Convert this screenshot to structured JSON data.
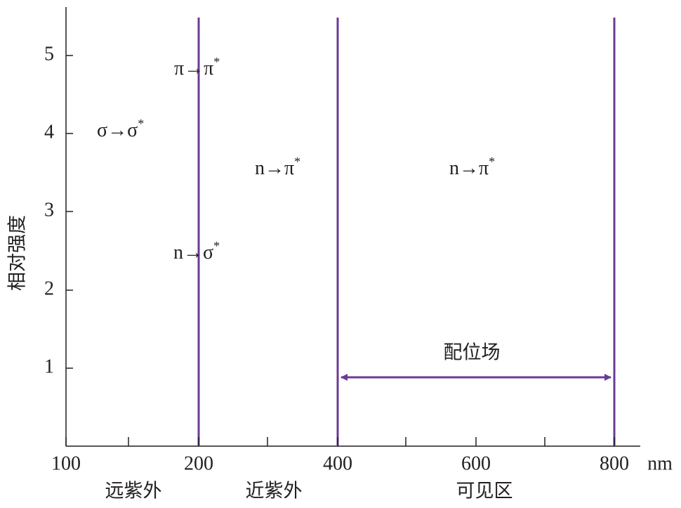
{
  "axes": {
    "y_label": "相对强度",
    "y_ticks": [
      "1",
      "2",
      "3",
      "4",
      "5"
    ],
    "x_ticks": [
      "100",
      "200",
      "400",
      "600",
      "800"
    ],
    "x_unit": "nm"
  },
  "regions": [
    "远紫外",
    "近紫外",
    "可见区"
  ],
  "transitions": [
    {
      "main": "π→π",
      "sup": "*"
    },
    {
      "main": "σ→σ",
      "sup": "*"
    },
    {
      "main": "n→π",
      "sup": "*"
    },
    {
      "main": "n→π",
      "sup": "*"
    },
    {
      "main": "n→σ",
      "sup": "*"
    }
  ],
  "arrow_label": "配位场"
}
